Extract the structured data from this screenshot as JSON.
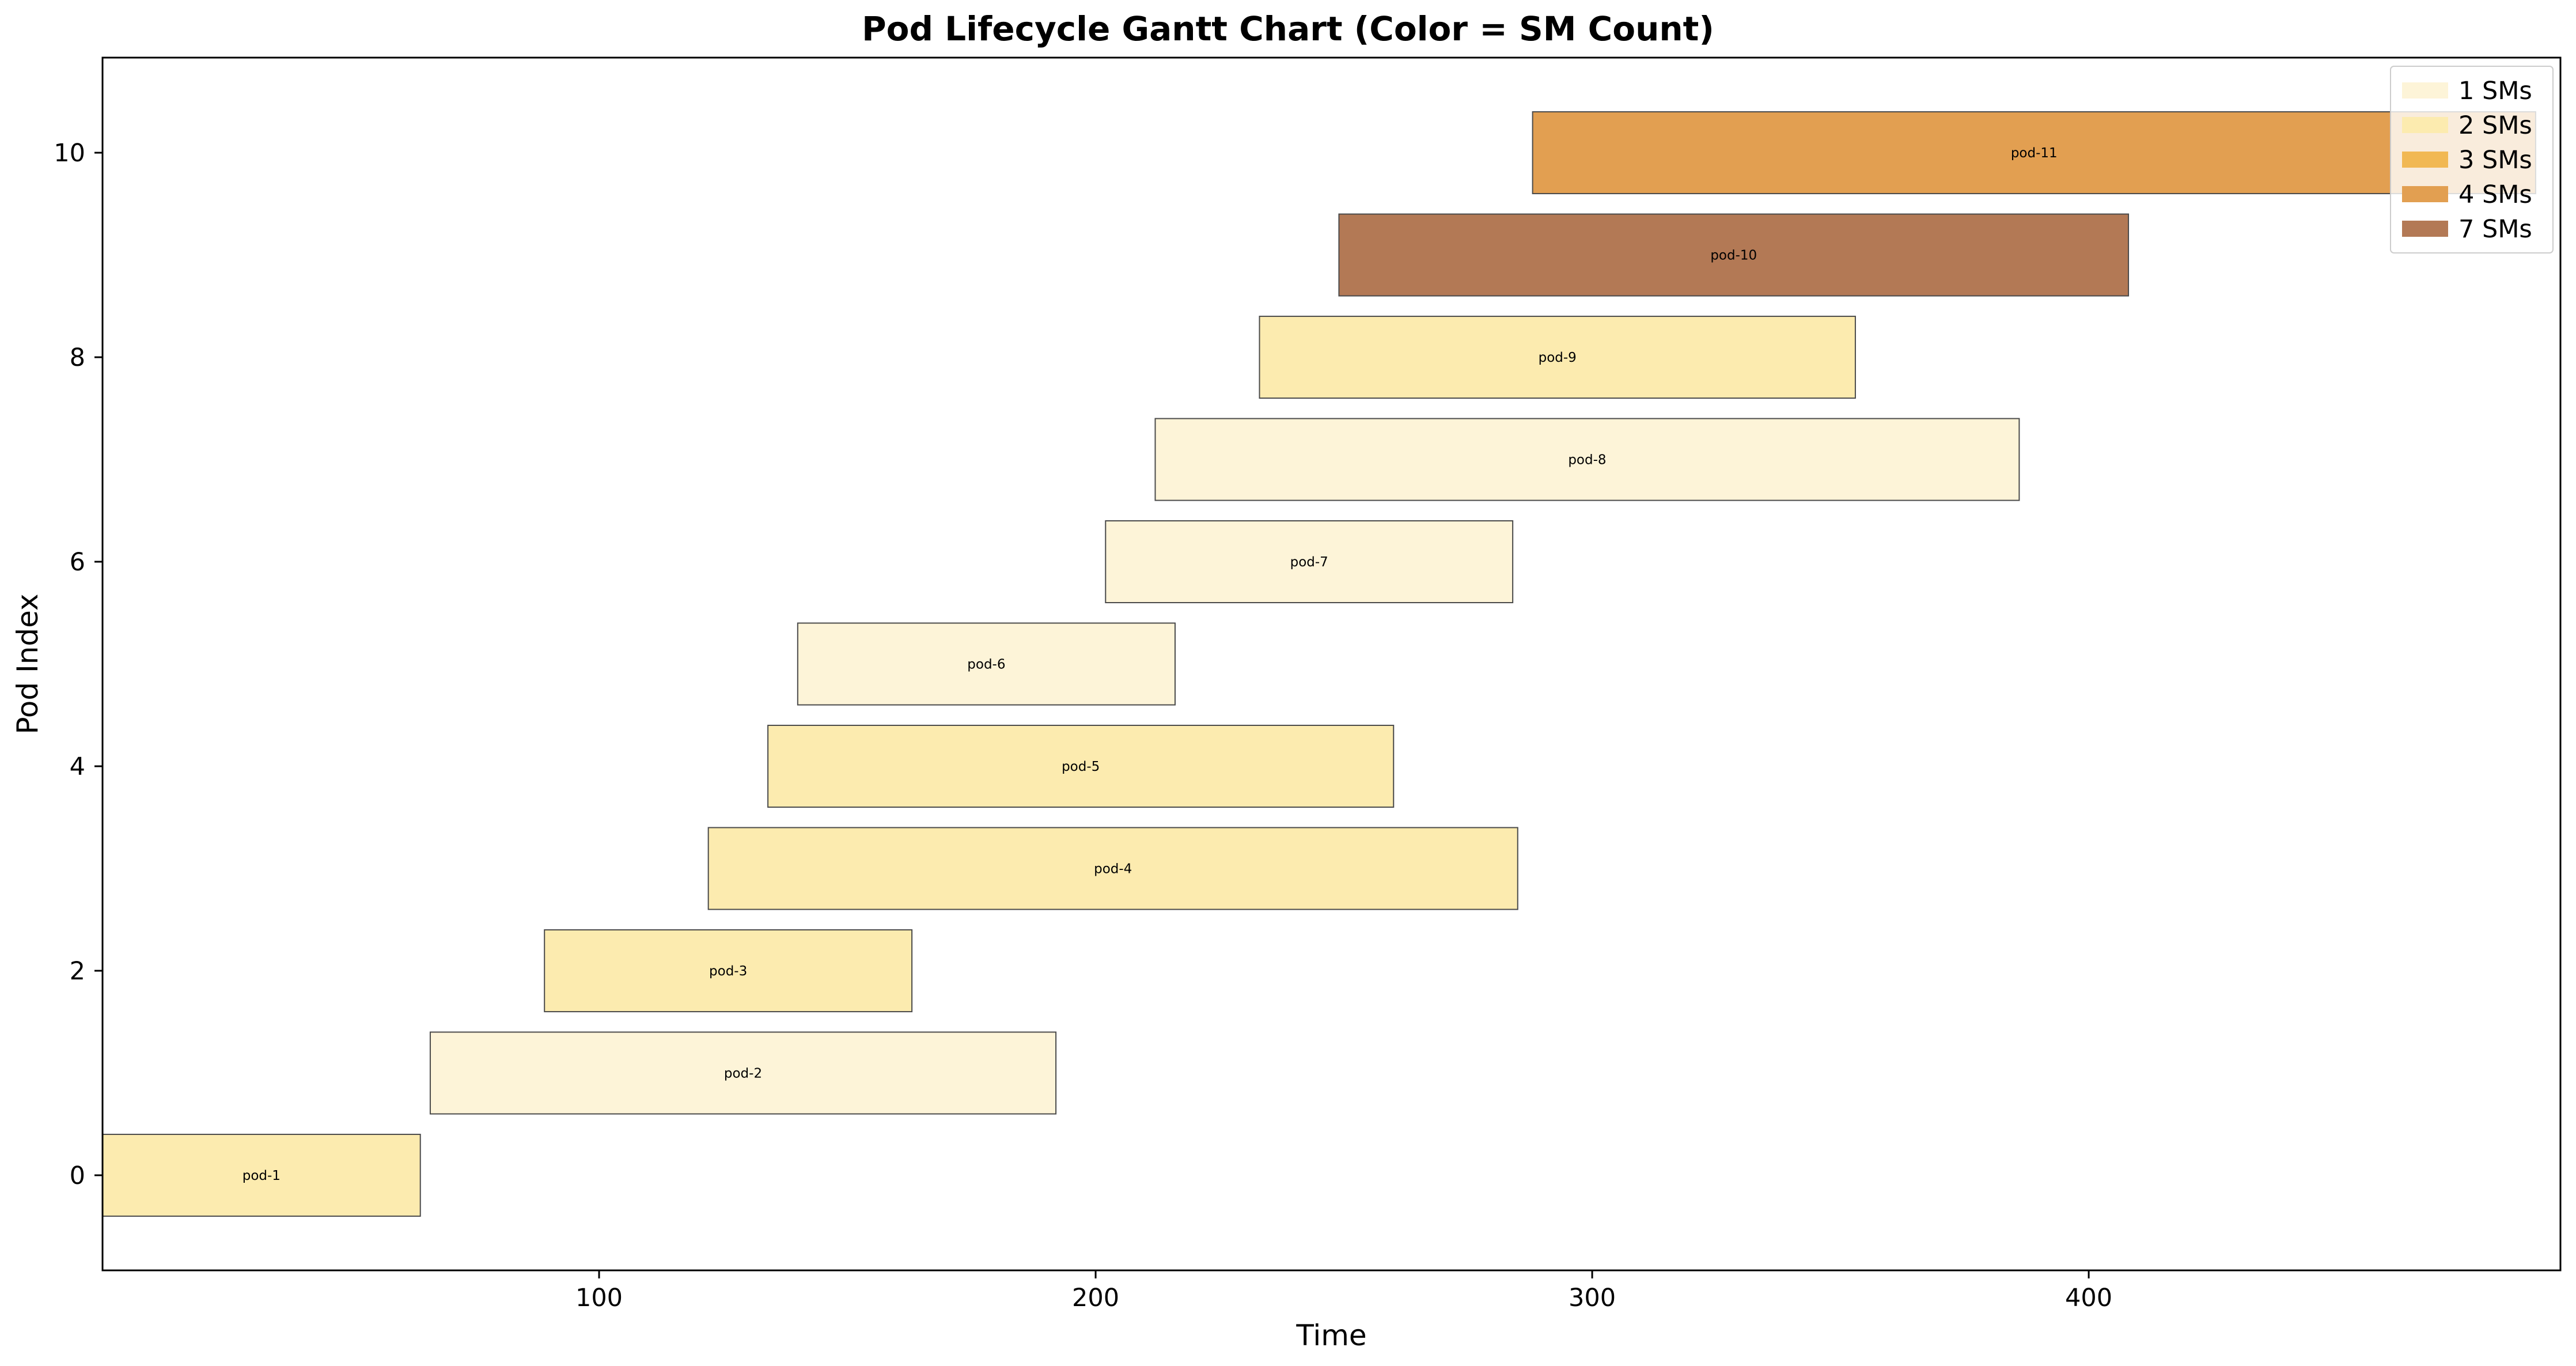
{
  "chart_data": {
    "type": "gantt",
    "title": "Pod Lifecycle Gantt Chart (Color = SM Count)",
    "xlabel": "Time",
    "ylabel": "Pod Index",
    "xlim": [
      0,
      495
    ],
    "ylim": [
      -0.93,
      10.93
    ],
    "xticks": [
      100,
      200,
      300,
      400
    ],
    "yticks": [
      0,
      2,
      4,
      6,
      8,
      10
    ],
    "grid": false,
    "legend_position": "top-right",
    "legend": [
      {
        "label": "1 SMs",
        "sm": 1,
        "color": "#fdf4d8"
      },
      {
        "label": "2 SMs",
        "sm": 2,
        "color": "#fcebaf"
      },
      {
        "label": "3 SMs",
        "sm": 3,
        "color": "#f1b853"
      },
      {
        "label": "4 SMs",
        "sm": 4,
        "color": "#e29f51"
      },
      {
        "label": "7 SMs",
        "sm": 7,
        "color": "#b37955"
      }
    ],
    "tasks": [
      {
        "name": "pod-1",
        "index": 0,
        "start": 0,
        "end": 64,
        "sm": 2
      },
      {
        "name": "pod-2",
        "index": 1,
        "start": 66,
        "end": 192,
        "sm": 1
      },
      {
        "name": "pod-3",
        "index": 2,
        "start": 89,
        "end": 163,
        "sm": 2
      },
      {
        "name": "pod-4",
        "index": 3,
        "start": 122,
        "end": 285,
        "sm": 2
      },
      {
        "name": "pod-5",
        "index": 4,
        "start": 134,
        "end": 260,
        "sm": 2
      },
      {
        "name": "pod-6",
        "index": 5,
        "start": 140,
        "end": 216,
        "sm": 1
      },
      {
        "name": "pod-7",
        "index": 6,
        "start": 202,
        "end": 284,
        "sm": 1
      },
      {
        "name": "pod-8",
        "index": 7,
        "start": 212,
        "end": 386,
        "sm": 1
      },
      {
        "name": "pod-9",
        "index": 8,
        "start": 233,
        "end": 353,
        "sm": 2
      },
      {
        "name": "pod-10",
        "index": 9,
        "start": 249,
        "end": 408,
        "sm": 7
      },
      {
        "name": "pod-11",
        "index": 10,
        "start": 288,
        "end": 490,
        "sm": 4
      }
    ]
  }
}
